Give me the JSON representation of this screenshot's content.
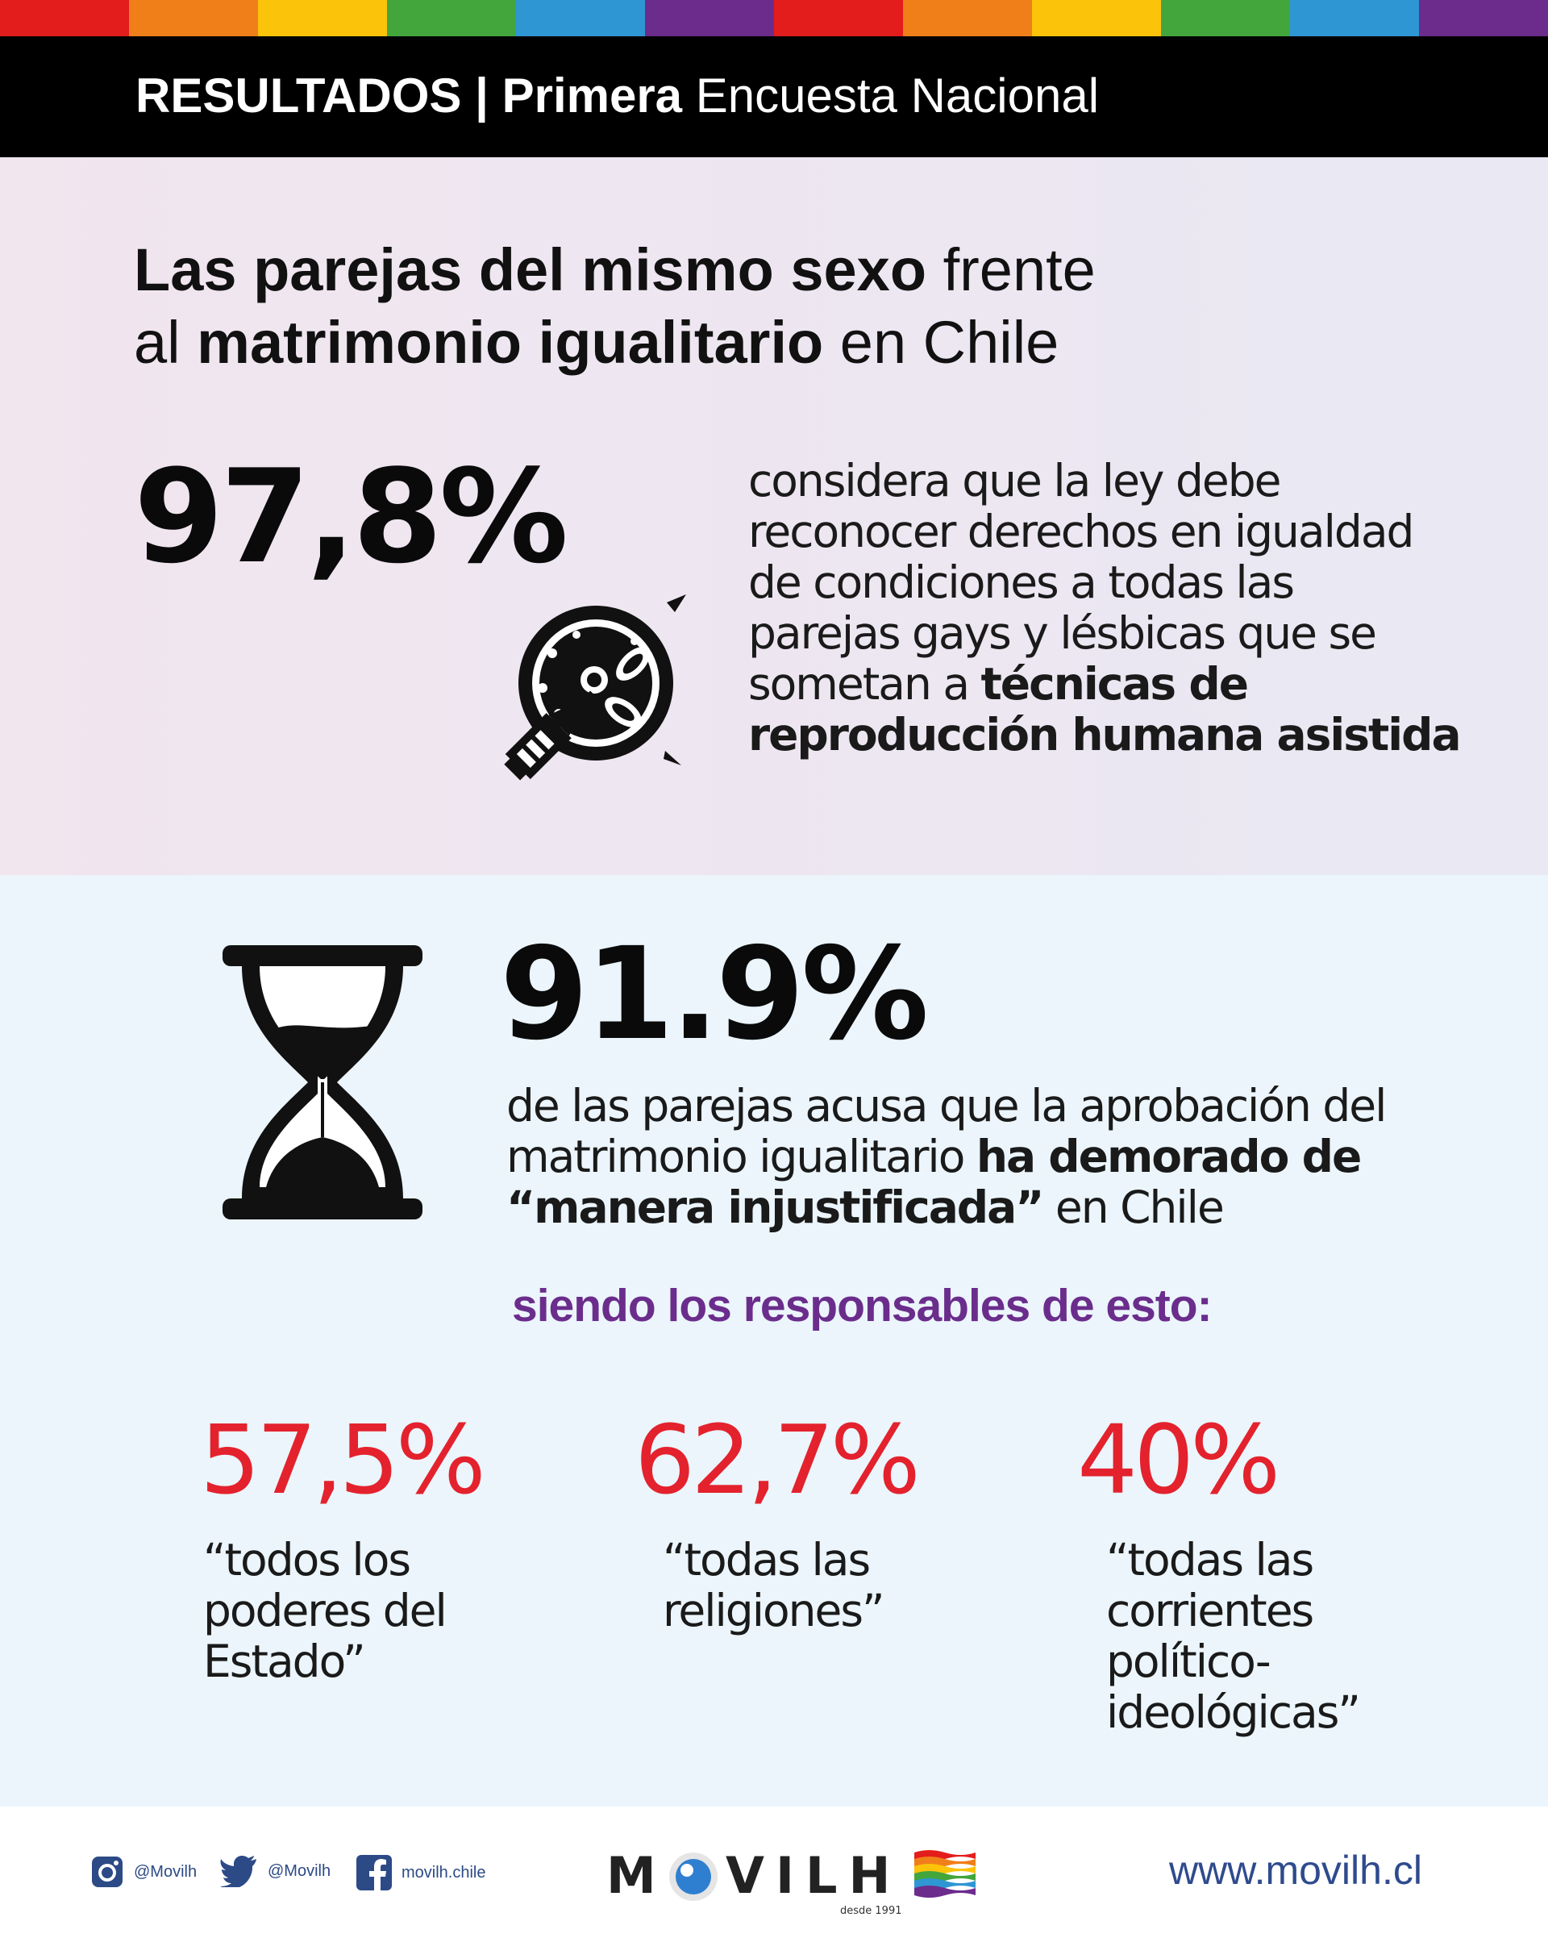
{
  "header": {
    "bold1": "RESULTADOS | ",
    "bold2": "Primera",
    "light": " Encuesta Nacional"
  },
  "title": {
    "b1": "Las parejas del mismo sexo",
    "t1": " frente",
    "t2": "al ",
    "b2": "matrimonio igualitario",
    "t3": " en Chile"
  },
  "stat1": {
    "value": "97,8%",
    "line1": "considera que la ley debe",
    "line2": "reconocer derechos en igualdad",
    "line3": "de condiciones a todas las",
    "line4": "parejas gays y lésbicas que se",
    "line5a": "sometan a ",
    "line5b": "técnicas de",
    "line6": "reproducción humana asistida"
  },
  "stat2": {
    "value": "91.9%",
    "line1": "de las parejas acusa que la aprobación del",
    "line2a": "matrimonio igualitario ",
    "line2b": "ha demorado de",
    "line3a": "“manera injustificada”",
    "line3b": " en Chile"
  },
  "responsables_heading": "siendo los responsables de esto:",
  "responsables": [
    {
      "value": "57,5%",
      "lines": [
        "“todos los",
        "poderes del",
        "Estado”"
      ]
    },
    {
      "value": "62,7%",
      "lines": [
        "“todas las",
        "religiones”"
      ]
    },
    {
      "value": "40%",
      "lines": [
        "“todas las",
        "corrientes",
        "político-",
        "ideológicas”"
      ]
    }
  ],
  "footer": {
    "instagram": "@Movilh",
    "twitter": "@Movilh",
    "facebook": "movilh.chile",
    "logo_left": "M",
    "logo_right": "VILH",
    "logo_sub": "desde 1991",
    "url": "www.movilh.cl"
  },
  "colors": {
    "rainbow": [
      "#e31d1b",
      "#f07f1a",
      "#fcc30b",
      "#42a63c",
      "#2f96d4",
      "#6b2c8c"
    ],
    "red": "#e3222d",
    "purple": "#6b2d8c",
    "link": "#2f4b8e"
  }
}
